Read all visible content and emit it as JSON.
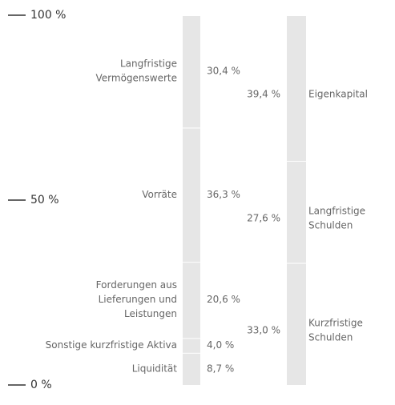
{
  "chart_data": {
    "type": "stacked-bar",
    "ylim": [
      0,
      100
    ],
    "yticks": [
      {
        "value": 100,
        "label": "100 %"
      },
      {
        "value": 50,
        "label": "50 %"
      },
      {
        "value": 0,
        "label": "0 %"
      }
    ],
    "color": "#e6e6e6",
    "columns": [
      {
        "side": "left",
        "segments": [
          {
            "name": [
              "Liquidität"
            ],
            "value": 8.7,
            "value_label": "8,7 %"
          },
          {
            "name": [
              "Sonstige kurzfristige Aktiva"
            ],
            "value": 4.0,
            "value_label": "4,0 %"
          },
          {
            "name": [
              "Forderungen aus",
              "Lieferungen und",
              "Leistungen"
            ],
            "value": 20.6,
            "value_label": "20,6 %"
          },
          {
            "name": [
              "Vorräte"
            ],
            "value": 36.3,
            "value_label": "36,3 %"
          },
          {
            "name": [
              "Langfristige",
              "Vermögenswerte"
            ],
            "value": 30.4,
            "value_label": "30,4 %"
          }
        ]
      },
      {
        "side": "right",
        "segments": [
          {
            "name": [
              "Kurzfristige",
              "Schulden"
            ],
            "value": 33.0,
            "value_label": "33,0 %"
          },
          {
            "name": [
              "Langfristige",
              "Schulden"
            ],
            "value": 27.6,
            "value_label": "27,6 %"
          },
          {
            "name": [
              "Eigenkapital"
            ],
            "value": 39.4,
            "value_label": "39,4 %"
          }
        ]
      }
    ]
  }
}
